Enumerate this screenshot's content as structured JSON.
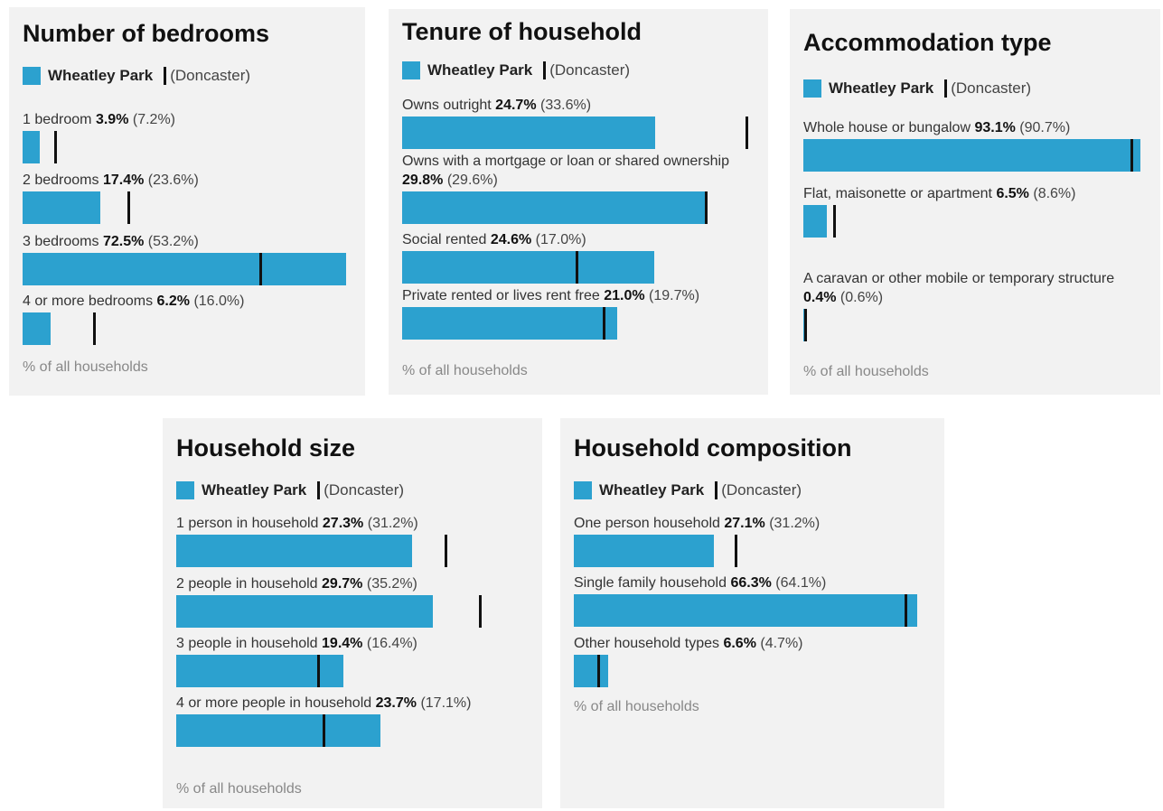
{
  "legend": {
    "area": "Wheatley Park",
    "comparison": "(Doncaster)"
  },
  "colors": {
    "bar": "#2ca1cf",
    "marker": "#111111",
    "panel": "#f2f2f2"
  },
  "footnote": "% of all households",
  "chart_data": [
    {
      "type": "bar",
      "title": "Number of bedrooms",
      "series": [
        {
          "name": "Wheatley Park",
          "values": [
            3.9,
            17.4,
            72.5,
            6.2
          ]
        },
        {
          "name": "(Doncaster)",
          "values": [
            7.2,
            23.6,
            53.2,
            16.0
          ]
        }
      ],
      "rows": [
        {
          "label": "1 bedroom",
          "value": 3.9,
          "value_text": "3.9%",
          "compare": 7.2,
          "compare_text": "(7.2%)"
        },
        {
          "label": "2 bedrooms",
          "value": 17.4,
          "value_text": "17.4%",
          "compare": 23.6,
          "compare_text": "(23.6%)"
        },
        {
          "label": "3 bedrooms",
          "value": 72.5,
          "value_text": "72.5%",
          "compare": 53.2,
          "compare_text": "(53.2%)"
        },
        {
          "label": "4 or more bedrooms",
          "value": 6.2,
          "value_text": "6.2%",
          "compare": 16.0,
          "compare_text": "(16.0%)"
        }
      ],
      "xlim": [
        0,
        72.5
      ],
      "footnote": "% of all households"
    },
    {
      "type": "bar",
      "title": "Tenure of household",
      "series": [
        {
          "name": "Wheatley Park",
          "values": [
            24.7,
            29.8,
            24.6,
            21.0
          ]
        },
        {
          "name": "(Doncaster)",
          "values": [
            33.6,
            29.6,
            17.0,
            19.7
          ]
        }
      ],
      "rows": [
        {
          "label": "Owns outright",
          "value": 24.7,
          "value_text": "24.7%",
          "compare": 33.6,
          "compare_text": "(33.6%)"
        },
        {
          "label": "Owns with a mortgage or loan or shared ownership",
          "value": 29.8,
          "value_text": "29.8%",
          "compare": 29.6,
          "compare_text": "(29.6%)"
        },
        {
          "label": "Social rented",
          "value": 24.6,
          "value_text": "24.6%",
          "compare": 17.0,
          "compare_text": "(17.0%)"
        },
        {
          "label": "Private rented or lives rent free",
          "value": 21.0,
          "value_text": "21.0%",
          "compare": 19.7,
          "compare_text": "(19.7%)"
        }
      ],
      "xlim": [
        0,
        33.6
      ],
      "footnote": "% of all households"
    },
    {
      "type": "bar",
      "title": "Accommodation type",
      "series": [
        {
          "name": "Wheatley Park",
          "values": [
            93.1,
            6.5,
            0.4
          ]
        },
        {
          "name": "(Doncaster)",
          "values": [
            90.7,
            8.6,
            0.6
          ]
        }
      ],
      "rows": [
        {
          "label": "Whole house or bungalow",
          "value": 93.1,
          "value_text": "93.1%",
          "compare": 90.7,
          "compare_text": "(90.7%)"
        },
        {
          "label": "Flat, maisonette or apartment",
          "value": 6.5,
          "value_text": "6.5%",
          "compare": 8.6,
          "compare_text": "(8.6%)"
        },
        {
          "label": "A caravan or other mobile or temporary structure",
          "value": 0.4,
          "value_text": "0.4%",
          "compare": 0.6,
          "compare_text": "(0.6%)"
        }
      ],
      "xlim": [
        0,
        93.1
      ],
      "footnote": "% of all households"
    },
    {
      "type": "bar",
      "title": "Household size",
      "series": [
        {
          "name": "Wheatley Park",
          "values": [
            27.3,
            29.7,
            19.4,
            23.7
          ]
        },
        {
          "name": "(Doncaster)",
          "values": [
            31.2,
            35.2,
            16.4,
            17.1
          ]
        }
      ],
      "rows": [
        {
          "label": "1 person in household",
          "value": 27.3,
          "value_text": "27.3%",
          "compare": 31.2,
          "compare_text": "(31.2%)"
        },
        {
          "label": "2 people in household",
          "value": 29.7,
          "value_text": "29.7%",
          "compare": 35.2,
          "compare_text": "(35.2%)"
        },
        {
          "label": "3 people in household",
          "value": 19.4,
          "value_text": "19.4%",
          "compare": 16.4,
          "compare_text": "(16.4%)"
        },
        {
          "label": "4 or more people in household",
          "value": 23.7,
          "value_text": "23.7%",
          "compare": 17.1,
          "compare_text": "(17.1%)"
        }
      ],
      "xlim": [
        0,
        35.2
      ],
      "footnote": "% of all households"
    },
    {
      "type": "bar",
      "title": "Household composition",
      "series": [
        {
          "name": "Wheatley Park",
          "values": [
            27.1,
            66.3,
            6.6
          ]
        },
        {
          "name": "(Doncaster)",
          "values": [
            31.2,
            64.1,
            4.7
          ]
        }
      ],
      "rows": [
        {
          "label": "One person household",
          "value": 27.1,
          "value_text": "27.1%",
          "compare": 31.2,
          "compare_text": "(31.2%)"
        },
        {
          "label": "Single family household",
          "value": 66.3,
          "value_text": "66.3%",
          "compare": 64.1,
          "compare_text": "(64.1%)"
        },
        {
          "label": "Other household types",
          "value": 6.6,
          "value_text": "6.6%",
          "compare": 4.7,
          "compare_text": "(4.7%)"
        }
      ],
      "xlim": [
        0,
        66.3
      ],
      "footnote": "% of all households"
    }
  ]
}
